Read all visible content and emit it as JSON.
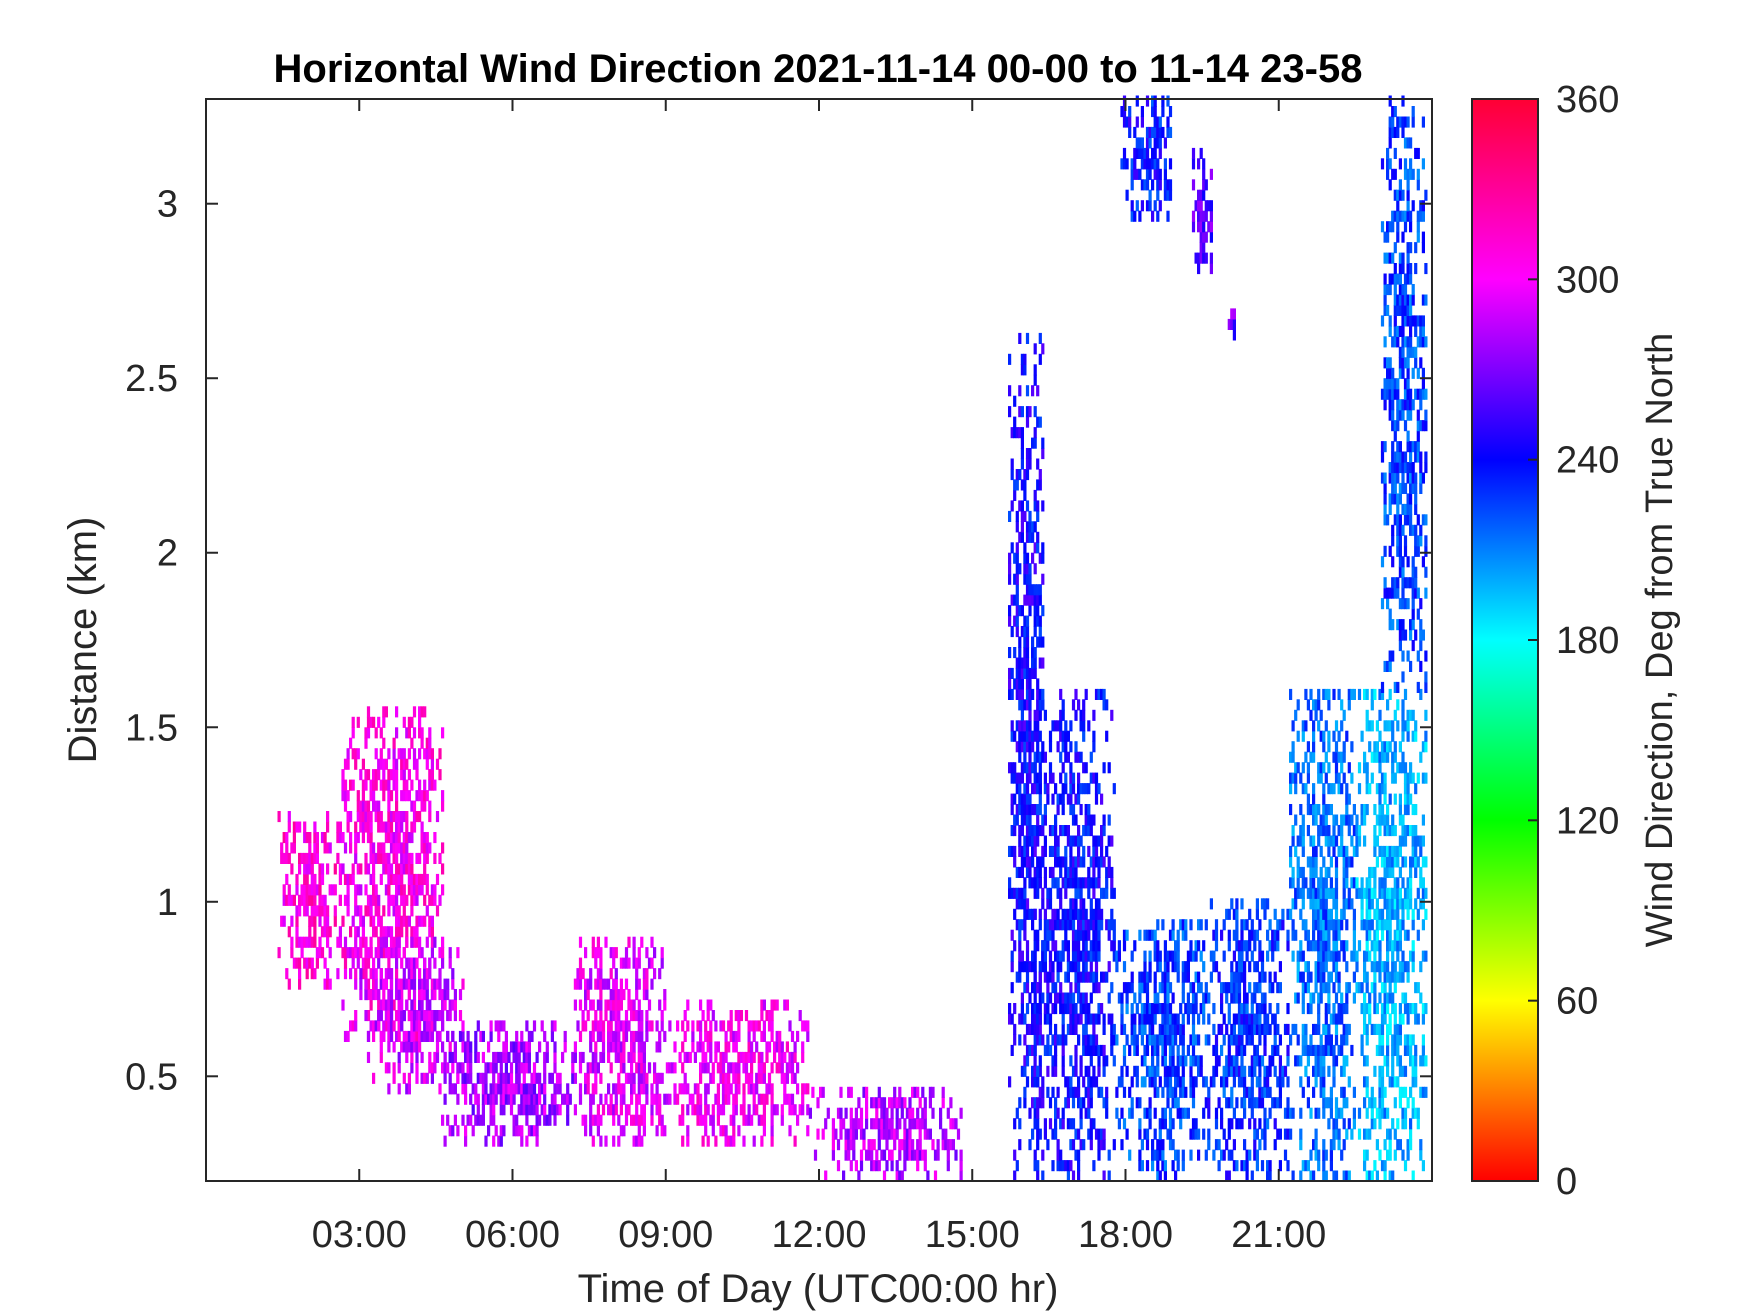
{
  "chart_data": {
    "type": "heatmap",
    "title": "Horizontal Wind Direction 2021-11-14 00-00 to 11-14 23-58",
    "xlabel": "Time of Day (UTC00:00 hr)",
    "ylabel": "Distance (km)",
    "colorbar_label": "Wind Direction, Deg from True North",
    "x_unit": "hours",
    "xlim": [
      0,
      24
    ],
    "ylim": [
      0.2,
      3.3
    ],
    "clim": [
      0,
      360
    ],
    "x_ticks": [
      3,
      6,
      9,
      12,
      15,
      18,
      21
    ],
    "x_tick_labels": [
      "03:00",
      "06:00",
      "09:00",
      "12:00",
      "15:00",
      "18:00",
      "21:00"
    ],
    "y_ticks": [
      0.5,
      1,
      1.5,
      2,
      2.5,
      3
    ],
    "y_tick_labels": [
      "0.5",
      "1",
      "1.5",
      "2",
      "2.5",
      "3"
    ],
    "colorbar_ticks": [
      0,
      60,
      120,
      180,
      240,
      300,
      360
    ],
    "colorbar_tick_labels": [
      "0",
      "60",
      "120",
      "180",
      "240",
      "300",
      "360"
    ],
    "colormap": [
      "#ff0000",
      "#ffff00",
      "#00ff00",
      "#00ffff",
      "#0000ff",
      "#ff00ff",
      "#ff0033"
    ],
    "grid": false,
    "regions": [
      {
        "t0": 1.4,
        "t1": 2.6,
        "h0": 0.75,
        "h1": 1.25,
        "dir": 310
      },
      {
        "t0": 2.6,
        "t1": 4.6,
        "h0": 0.6,
        "h1": 1.55,
        "dir": 305
      },
      {
        "t0": 3.0,
        "t1": 5.0,
        "h0": 0.45,
        "h1": 0.9,
        "dir": 290
      },
      {
        "t0": 4.6,
        "t1": 7.2,
        "h0": 0.3,
        "h1": 0.65,
        "dir": 280
      },
      {
        "t0": 7.2,
        "t1": 9.0,
        "h0": 0.3,
        "h1": 0.9,
        "dir": 295
      },
      {
        "t0": 9.0,
        "t1": 11.8,
        "h0": 0.3,
        "h1": 0.7,
        "dir": 300
      },
      {
        "t0": 11.8,
        "t1": 14.8,
        "h0": 0.2,
        "h1": 0.45,
        "dir": 285
      },
      {
        "t0": 15.7,
        "t1": 16.4,
        "h0": 0.2,
        "h1": 2.6,
        "dir": 242
      },
      {
        "t0": 16.2,
        "t1": 17.8,
        "h0": 0.2,
        "h1": 1.6,
        "dir": 240
      },
      {
        "t0": 17.8,
        "t1": 19.6,
        "h0": 0.2,
        "h1": 0.95,
        "dir": 225
      },
      {
        "t0": 19.6,
        "t1": 21.2,
        "h0": 0.2,
        "h1": 1.0,
        "dir": 230
      },
      {
        "t0": 21.2,
        "t1": 22.5,
        "h0": 0.2,
        "h1": 1.6,
        "dir": 215
      },
      {
        "t0": 22.5,
        "t1": 23.9,
        "h0": 0.2,
        "h1": 1.6,
        "dir": 200
      },
      {
        "t0": 23.0,
        "t1": 23.9,
        "h0": 1.6,
        "h1": 3.3,
        "dir": 225
      },
      {
        "t0": 17.9,
        "t1": 18.9,
        "h0": 2.95,
        "h1": 3.3,
        "dir": 235
      },
      {
        "t0": 19.3,
        "t1": 19.7,
        "h0": 2.8,
        "h1": 3.15,
        "dir": 260
      },
      {
        "t0": 20.0,
        "t1": 20.15,
        "h0": 2.55,
        "h1": 2.7,
        "dir": 265
      }
    ]
  }
}
